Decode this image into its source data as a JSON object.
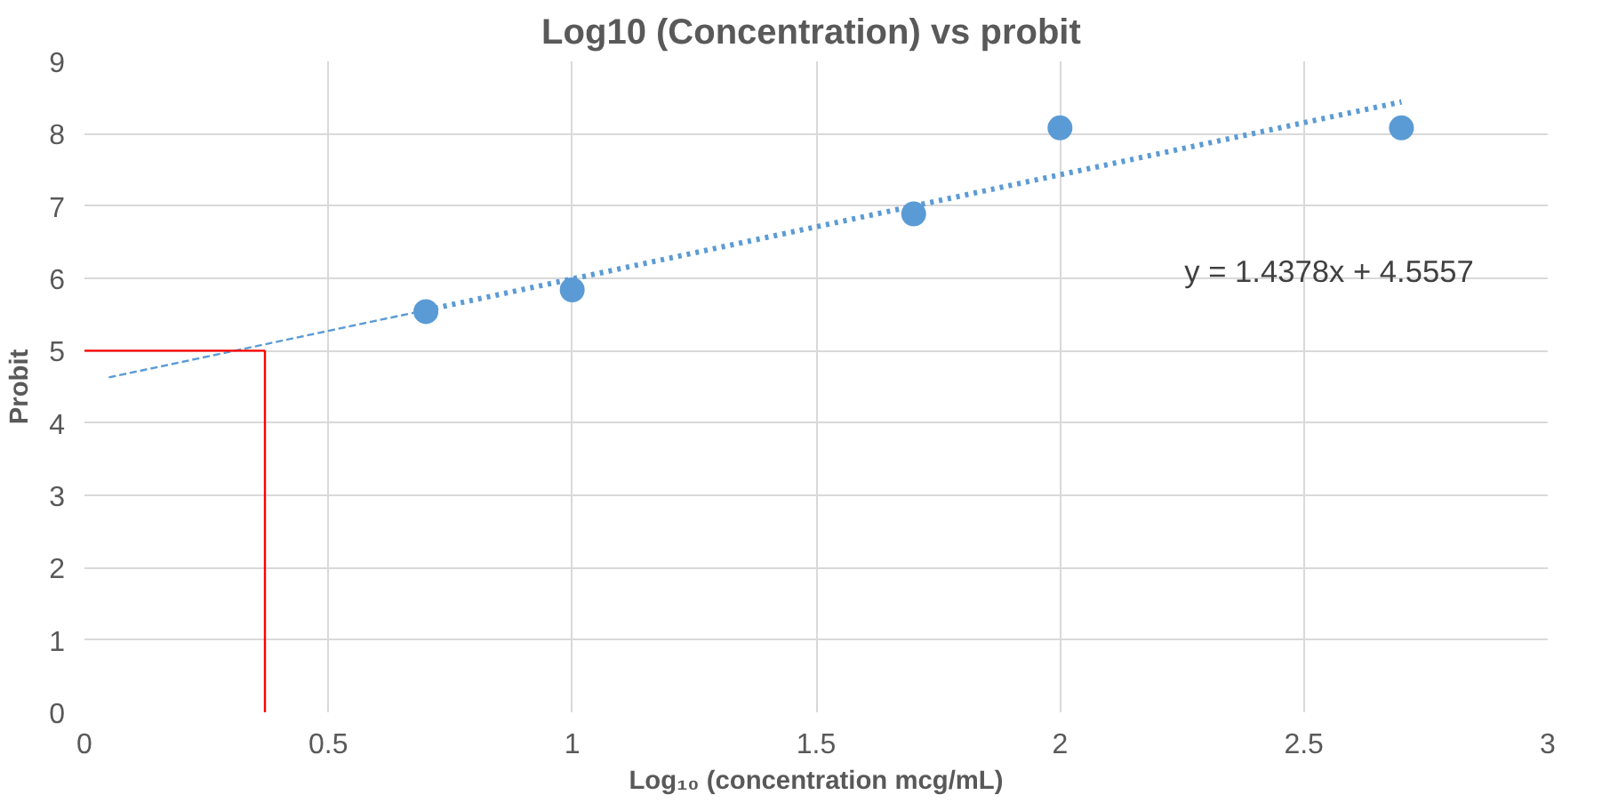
{
  "chart_data": {
    "type": "scatter",
    "title": "Log10 (Concentration)  vs probit",
    "xlabel": "Log₁₀ (concentration mcg/mL)",
    "ylabel": "Probit",
    "xlim": [
      0,
      3
    ],
    "xticks": [
      0,
      0.5,
      1,
      1.5,
      2,
      2.5,
      3
    ],
    "ylim": [
      0,
      9
    ],
    "yticks": [
      0,
      1,
      2,
      3,
      4,
      5,
      6,
      7,
      8,
      9
    ],
    "grid": true,
    "series": [
      {
        "color": "#5b9bd5",
        "marker": "circle",
        "x": [
          0.7,
          1,
          1.7,
          2,
          2.7
        ],
        "values": [
          5.54,
          5.84,
          6.89,
          8.08,
          8.08
        ]
      },
      {
        "type": "line",
        "color": "#5b9bd5",
        "line_style": "dotted",
        "x": [
          0.7,
          2.7
        ],
        "values": [
          5.56,
          8.44
        ]
      },
      {
        "type": "line",
        "color": "#5b9bd5",
        "line_style": "dashed",
        "x": [
          0.05,
          0.7
        ],
        "values": [
          4.63,
          5.56
        ]
      },
      {
        "type": "line",
        "color": "#ff0000",
        "line_style": "solid",
        "x": [
          0,
          0.37
        ],
        "values": [
          5,
          5
        ]
      },
      {
        "type": "line",
        "color": "#ff0000",
        "line_style": "solid",
        "x": [
          0.37,
          0.37
        ],
        "values": [
          5,
          0
        ]
      }
    ],
    "annotations": [
      "y = 1.4378x + 4.5557"
    ]
  }
}
